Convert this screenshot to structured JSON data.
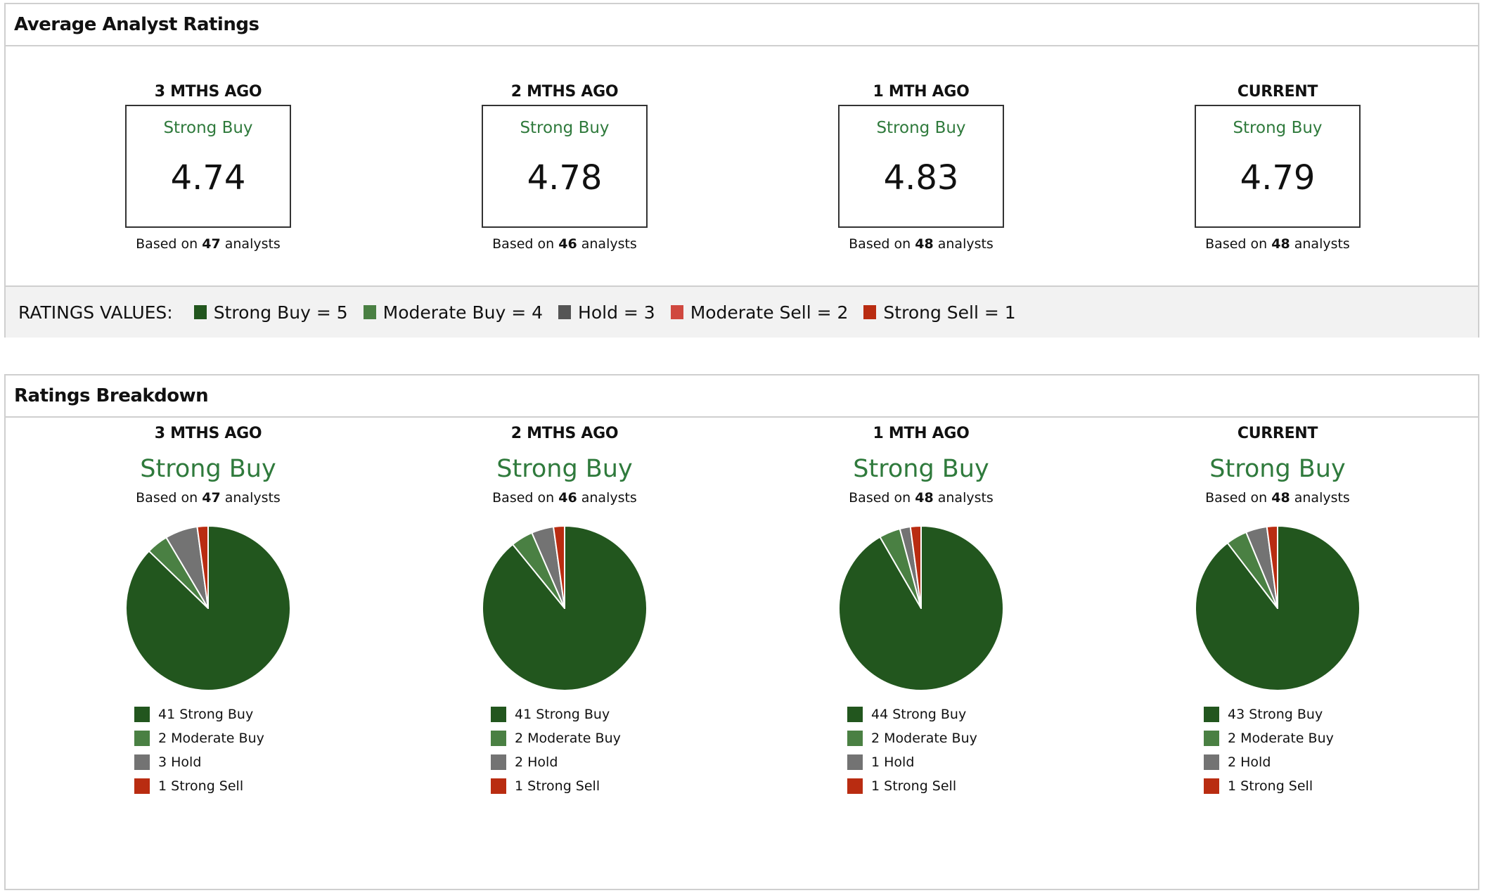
{
  "average": {
    "title": "Average Analyst Ratings",
    "columns": [
      {
        "period": "3 MTHS AGO",
        "rating": "Strong Buy",
        "score": "4.74",
        "based_prefix": "Based on",
        "count": "47",
        "based_suffix": "analysts"
      },
      {
        "period": "2 MTHS AGO",
        "rating": "Strong Buy",
        "score": "4.78",
        "based_prefix": "Based on",
        "count": "46",
        "based_suffix": "analysts"
      },
      {
        "period": "1 MTH AGO",
        "rating": "Strong Buy",
        "score": "4.83",
        "based_prefix": "Based on",
        "count": "48",
        "based_suffix": "analysts"
      },
      {
        "period": "CURRENT",
        "rating": "Strong Buy",
        "score": "4.79",
        "based_prefix": "Based on",
        "count": "48",
        "based_suffix": "analysts"
      }
    ],
    "legend_title": "RATINGS VALUES:",
    "legend": [
      {
        "label": "Strong Buy = 5",
        "color": "#22561e"
      },
      {
        "label": "Moderate Buy = 4",
        "color": "#4a8043"
      },
      {
        "label": "Hold = 3",
        "color": "#555555"
      },
      {
        "label": "Moderate Sell = 2",
        "color": "#d0483f"
      },
      {
        "label": "Strong Sell = 1",
        "color": "#b92c11"
      }
    ]
  },
  "breakdown": {
    "title": "Ratings Breakdown",
    "colors": {
      "Strong Buy": "#22561e",
      "Moderate Buy": "#4a8043",
      "Hold": "#737373",
      "Strong Sell": "#b92c11"
    }
  },
  "chart_data": [
    {
      "type": "pie",
      "title": "3 MTHS AGO",
      "subtitle": "Strong Buy",
      "based_prefix": "Based on",
      "count": "47",
      "based_suffix": "analysts",
      "slices": [
        {
          "label": "41 Strong Buy",
          "name": "Strong Buy",
          "value": 41
        },
        {
          "label": "2 Moderate Buy",
          "name": "Moderate Buy",
          "value": 2
        },
        {
          "label": "3 Hold",
          "name": "Hold",
          "value": 3
        },
        {
          "label": "1 Strong Sell",
          "name": "Strong Sell",
          "value": 1
        }
      ]
    },
    {
      "type": "pie",
      "title": "2 MTHS AGO",
      "subtitle": "Strong Buy",
      "based_prefix": "Based on",
      "count": "46",
      "based_suffix": "analysts",
      "slices": [
        {
          "label": "41 Strong Buy",
          "name": "Strong Buy",
          "value": 41
        },
        {
          "label": "2 Moderate Buy",
          "name": "Moderate Buy",
          "value": 2
        },
        {
          "label": "2 Hold",
          "name": "Hold",
          "value": 2
        },
        {
          "label": "1 Strong Sell",
          "name": "Strong Sell",
          "value": 1
        }
      ]
    },
    {
      "type": "pie",
      "title": "1 MTH AGO",
      "subtitle": "Strong Buy",
      "based_prefix": "Based on",
      "count": "48",
      "based_suffix": "analysts",
      "slices": [
        {
          "label": "44 Strong Buy",
          "name": "Strong Buy",
          "value": 44
        },
        {
          "label": "2 Moderate Buy",
          "name": "Moderate Buy",
          "value": 2
        },
        {
          "label": "1 Hold",
          "name": "Hold",
          "value": 1
        },
        {
          "label": "1 Strong Sell",
          "name": "Strong Sell",
          "value": 1
        }
      ]
    },
    {
      "type": "pie",
      "title": "CURRENT",
      "subtitle": "Strong Buy",
      "based_prefix": "Based on",
      "count": "48",
      "based_suffix": "analysts",
      "slices": [
        {
          "label": "43 Strong Buy",
          "name": "Strong Buy",
          "value": 43
        },
        {
          "label": "2 Moderate Buy",
          "name": "Moderate Buy",
          "value": 2
        },
        {
          "label": "2 Hold",
          "name": "Hold",
          "value": 2
        },
        {
          "label": "1 Strong Sell",
          "name": "Strong Sell",
          "value": 1
        }
      ]
    }
  ]
}
